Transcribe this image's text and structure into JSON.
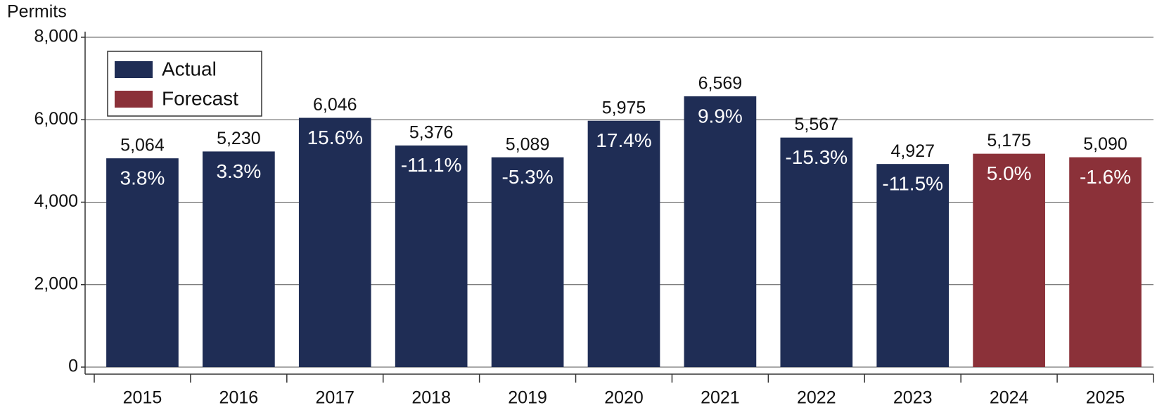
{
  "chart_data": {
    "type": "bar",
    "y_label": "Permits",
    "categories": [
      "2015",
      "2016",
      "2017",
      "2018",
      "2019",
      "2020",
      "2021",
      "2022",
      "2023",
      "2024",
      "2025"
    ],
    "series": [
      {
        "name": "Actual",
        "color": "#1f2d55",
        "values": [
          5064,
          5230,
          6046,
          5376,
          5089,
          5975,
          6569,
          5567,
          4927,
          null,
          null
        ],
        "value_labels": [
          "5,064",
          "5,230",
          "6,046",
          "5,376",
          "5,089",
          "5,975",
          "6,569",
          "5,567",
          "4,927",
          null,
          null
        ]
      },
      {
        "name": "Forecast",
        "color": "#8b3139",
        "values": [
          null,
          null,
          null,
          null,
          null,
          null,
          null,
          null,
          null,
          5175,
          5090
        ],
        "value_labels": [
          null,
          null,
          null,
          null,
          null,
          null,
          null,
          null,
          null,
          "5,175",
          "5,090"
        ]
      }
    ],
    "growth_labels": [
      "3.8%",
      "3.3%",
      "15.6%",
      "-11.1%",
      "-5.3%",
      "17.4%",
      "9.9%",
      "-15.3%",
      "-11.5%",
      "5.0%",
      "-1.6%"
    ],
    "ylim": [
      0,
      8000
    ],
    "yticks": [
      0,
      {
        "value": 2000,
        "label": "2,000"
      },
      {
        "value": 4000,
        "label": "4,000"
      },
      {
        "value": 6000,
        "label": "6,000"
      },
      {
        "value": 8000,
        "label": "8,000"
      }
    ],
    "grid": true,
    "legend": "top-left"
  }
}
